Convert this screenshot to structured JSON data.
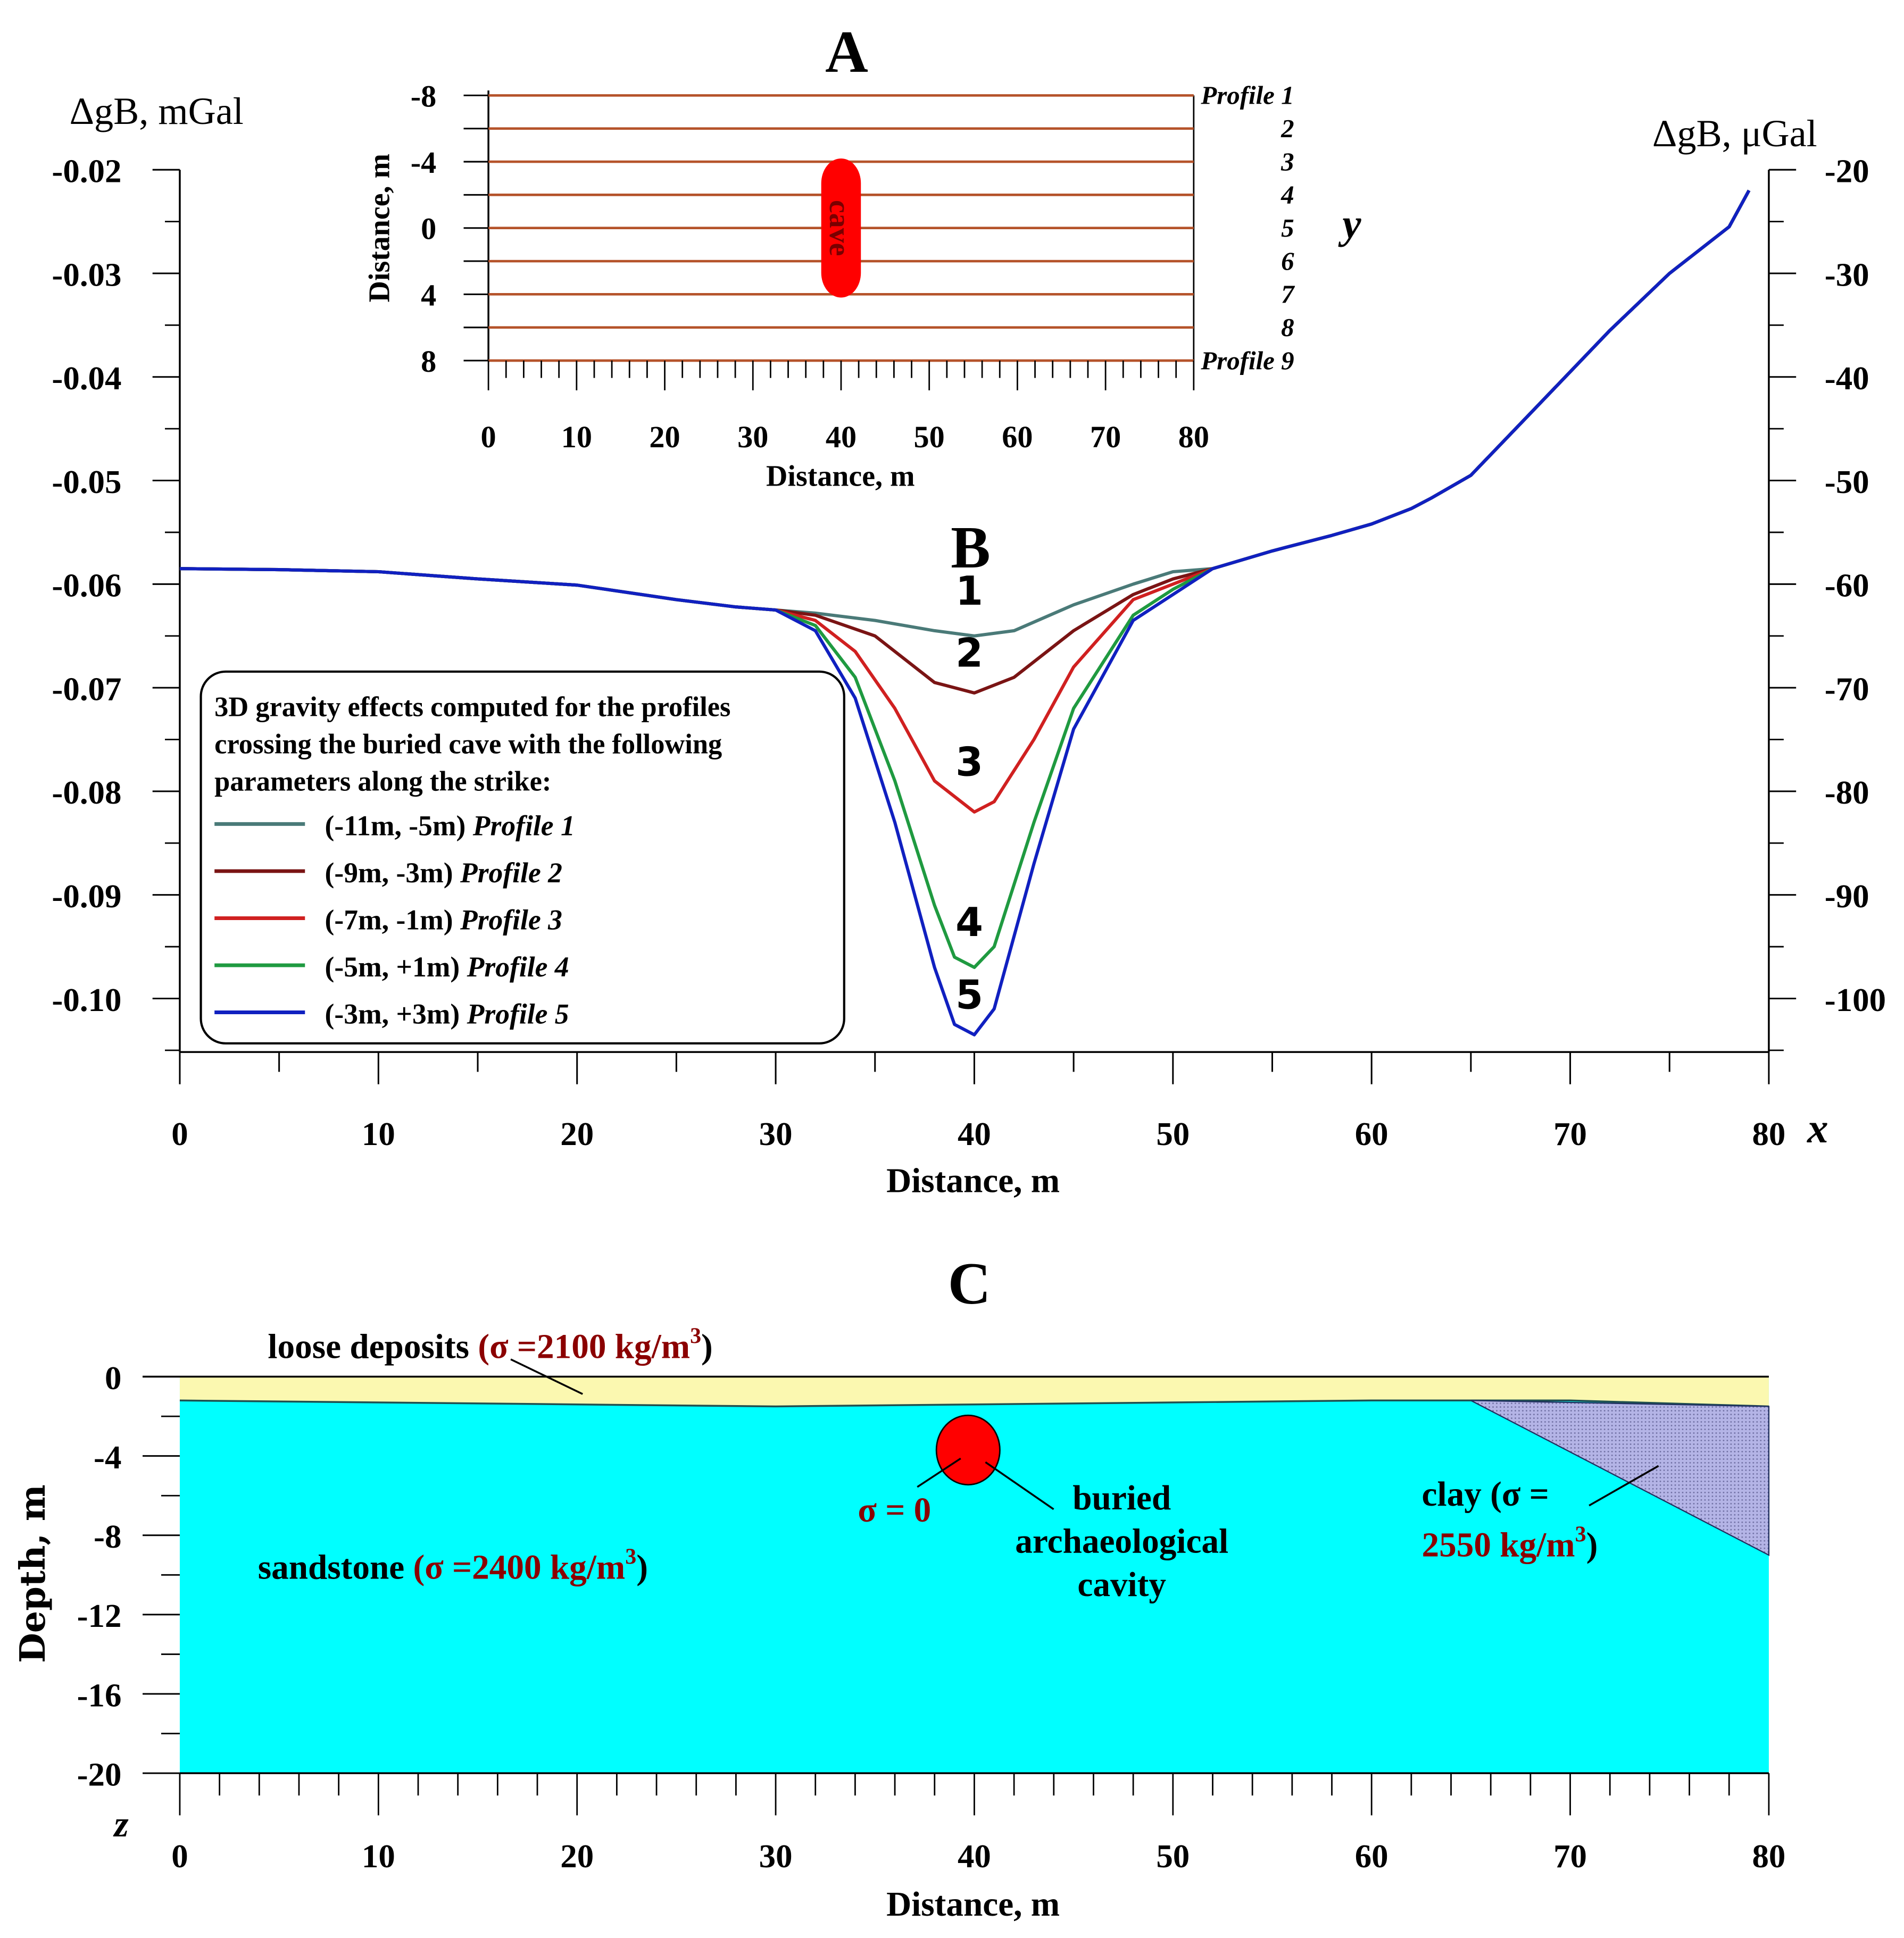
{
  "chart_data": [
    {
      "panel": "A",
      "type": "line",
      "xlabel": "Distance, m",
      "ylabel": "Distance, m",
      "xlim": [
        0,
        80
      ],
      "ylim": [
        -8,
        8
      ],
      "y_inverted": true,
      "xticks": [
        0,
        10,
        20,
        30,
        40,
        50,
        60,
        70,
        80
      ],
      "yticks": [
        -8,
        -4,
        0,
        4,
        8
      ],
      "ytick_labels": [
        "-8",
        "-4",
        "0",
        "4",
        "8"
      ],
      "axis_letter": "y",
      "profiles": [
        {
          "label": "Profile 1",
          "y": -8
        },
        {
          "label": "2",
          "y": -6
        },
        {
          "label": "3",
          "y": -4
        },
        {
          "label": "4",
          "y": -2
        },
        {
          "label": "5",
          "y": 0
        },
        {
          "label": "6",
          "y": 2
        },
        {
          "label": "7",
          "y": 4
        },
        {
          "label": "8",
          "y": 6
        },
        {
          "label": "Profile 9",
          "y": 8
        }
      ],
      "profile_color": "#b5532a",
      "cave": {
        "label": "cave",
        "x": 40,
        "y_range": [
          -3,
          3
        ],
        "color": "#ff0000"
      }
    },
    {
      "panel": "B",
      "type": "line",
      "xlabel": "Distance, m",
      "ylabel_left": "ΔgB, mGal",
      "ylabel_right": "ΔgB, μGal",
      "axis_letter": "x",
      "xlim": [
        0,
        80
      ],
      "ylim": [
        -0.105,
        -0.02
      ],
      "xticks": [
        0,
        10,
        20,
        30,
        40,
        50,
        60,
        70,
        80
      ],
      "yticks_left": [
        "-0.02",
        "-0.03",
        "-0.04",
        "-0.05",
        "-0.06",
        "-0.07",
        "-0.08",
        "-0.09",
        "-0.10"
      ],
      "yticks_right": [
        "-20",
        "-30",
        "-40",
        "-50",
        "-60",
        "-70",
        "-80",
        "-90",
        "-100"
      ],
      "legend": {
        "title": [
          "3D gravity effects computed for the profiles",
          "crossing the buried cave with the following",
          "parameters along the strike:"
        ],
        "placement": "bottom-left"
      },
      "common_left": {
        "x": [
          0,
          5,
          10,
          15,
          20,
          25,
          28,
          30
        ],
        "y": [
          -0.0585,
          -0.0586,
          -0.0588,
          -0.0595,
          -0.0601,
          -0.0615,
          -0.0622,
          -0.0625
        ]
      },
      "common_right": {
        "x": [
          52,
          55,
          58,
          60,
          62,
          63,
          65,
          68,
          70,
          72,
          75,
          78,
          79
        ],
        "y": [
          -0.0585,
          -0.0568,
          -0.0553,
          -0.0542,
          -0.0527,
          -0.0517,
          -0.0495,
          -0.0435,
          -0.0395,
          -0.0355,
          -0.03,
          -0.0255,
          -0.022
        ]
      },
      "series": [
        {
          "name": "Profile 1",
          "params": "(-11m, -5m)",
          "curve_label": "1",
          "color": "#4a7a78",
          "x": [
            32,
            35,
            38,
            40,
            42,
            45,
            48,
            50
          ],
          "y": [
            -0.0628,
            -0.0635,
            -0.0645,
            -0.065,
            -0.0645,
            -0.062,
            -0.06,
            -0.0588
          ]
        },
        {
          "name": "Profile 2",
          "params": "(-9m, -3m)",
          "curve_label": "2",
          "color": "#7a1414",
          "x": [
            32,
            35,
            38,
            40,
            42,
            45,
            48,
            50
          ],
          "y": [
            -0.063,
            -0.065,
            -0.0695,
            -0.0705,
            -0.069,
            -0.0645,
            -0.061,
            -0.0595
          ]
        },
        {
          "name": "Profile 3",
          "params": "(-7m, -1m)",
          "curve_label": "3",
          "color": "#d02020",
          "x": [
            32,
            34,
            36,
            38,
            40,
            41,
            43,
            45,
            48,
            50
          ],
          "y": [
            -0.0635,
            -0.0665,
            -0.072,
            -0.079,
            -0.082,
            -0.081,
            -0.075,
            -0.068,
            -0.0615,
            -0.06
          ]
        },
        {
          "name": "Profile 4",
          "params": "(-5m, +1m)",
          "curve_label": "4",
          "color": "#1f9a40",
          "x": [
            32,
            34,
            36,
            38,
            39,
            40,
            41,
            43,
            45,
            48,
            50
          ],
          "y": [
            -0.064,
            -0.069,
            -0.079,
            -0.091,
            -0.096,
            -0.097,
            -0.095,
            -0.083,
            -0.072,
            -0.063,
            -0.0605
          ]
        },
        {
          "name": "Profile 5",
          "params": "(-3m, +3m)",
          "curve_label": "5",
          "color": "#1020c0",
          "x": [
            32,
            34,
            36,
            38,
            39,
            40,
            41,
            43,
            45,
            48,
            50
          ],
          "y": [
            -0.0645,
            -0.071,
            -0.083,
            -0.097,
            -0.1025,
            -0.1035,
            -0.101,
            -0.087,
            -0.074,
            -0.0635,
            -0.061
          ]
        }
      ]
    },
    {
      "panel": "C",
      "type": "area",
      "xlabel": "Distance, m",
      "ylabel": "Depth, m",
      "axis_letter": "z",
      "xlim": [
        0,
        80
      ],
      "ylim": [
        -20,
        0
      ],
      "xticks": [
        0,
        10,
        20,
        30,
        40,
        50,
        60,
        70,
        80
      ],
      "yticks": [
        "0",
        "-4",
        "-8",
        "-12",
        "-16",
        "-20"
      ],
      "layers": {
        "loose": {
          "label": "loose deposits",
          "density": "(σ =2100 kg/m",
          "color": "#fbf8b0",
          "base_x": [
            0,
            10,
            20,
            30,
            40,
            50,
            60,
            65,
            70,
            80
          ],
          "base_z": [
            -1.2,
            -1.3,
            -1.4,
            -1.5,
            -1.4,
            -1.3,
            -1.2,
            -1.2,
            -1.2,
            -1.5
          ]
        },
        "sandstone": {
          "label": "sandstone",
          "density": "(σ =2400 kg/m",
          "color": "#00ffff"
        },
        "clay": {
          "label": "clay (σ =",
          "density": "2550 kg/m",
          "color": "#b4b4e6",
          "polygon_x": [
            65,
            80,
            80
          ],
          "polygon_z": [
            -1.2,
            -1.5,
            -9
          ]
        },
        "cavity": {
          "label": [
            "buried",
            "archaeological",
            "cavity"
          ],
          "density": "σ = 0",
          "x": 40,
          "z": -3.7,
          "radius": 1.6,
          "color": "#ff0000"
        }
      },
      "density_color": "#8b0000"
    }
  ],
  "panel_letters": [
    "A",
    "B",
    "C"
  ]
}
